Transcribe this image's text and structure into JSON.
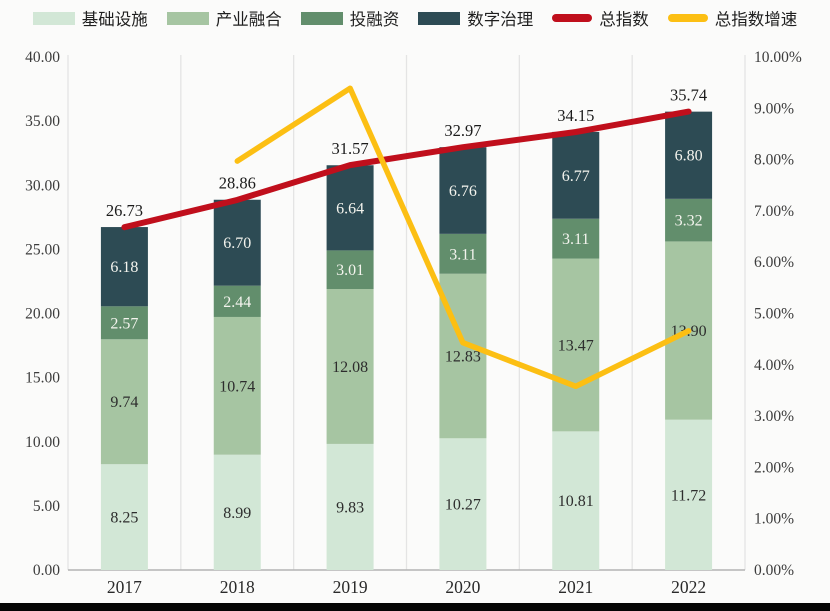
{
  "page": {
    "background_color": "#fbfbfa",
    "bottom_strip_color": "#050505"
  },
  "chart_data": {
    "type": "combo-stacked-bar-line",
    "title": "",
    "categories": [
      "2017",
      "2018",
      "2019",
      "2020",
      "2021",
      "2022"
    ],
    "bar_series": [
      {
        "name": "基础设施",
        "color": "#d2e7d6",
        "label_color": "#2d2d2d",
        "values": [
          8.25,
          8.99,
          9.83,
          10.27,
          10.81,
          11.72
        ]
      },
      {
        "name": "产业融合",
        "color": "#a6c5a2",
        "label_color": "#2d2d2d",
        "values": [
          9.74,
          10.74,
          12.08,
          12.83,
          13.47,
          13.9
        ]
      },
      {
        "name": "投融资",
        "color": "#628e6c",
        "label_color": "#f4f4ee",
        "values": [
          2.57,
          2.44,
          3.01,
          3.11,
          3.11,
          3.32
        ]
      },
      {
        "name": "数字治理",
        "color": "#2d4b54",
        "label_color": "#f4f4ee",
        "values": [
          6.18,
          6.7,
          6.64,
          6.76,
          6.77,
          6.8
        ]
      }
    ],
    "totals": [
      26.73,
      28.86,
      31.57,
      32.97,
      34.15,
      35.74
    ],
    "totals_label_color": "#1b1b1b",
    "line_series": [
      {
        "name": "总指数",
        "axis": "left",
        "color": "#c00f1c",
        "width": 6,
        "values": [
          26.73,
          28.86,
          31.57,
          32.97,
          34.15,
          35.74
        ]
      },
      {
        "name": "总指数增速",
        "axis": "right",
        "color": "#fcbf13",
        "width": 5.5,
        "values": [
          null,
          7.97,
          9.39,
          4.43,
          3.58,
          4.66
        ]
      }
    ],
    "left_axis": {
      "min": 0,
      "max": 40,
      "step": 5,
      "decimals": 2,
      "suffix": "",
      "tick_color": "#3c3c3c"
    },
    "right_axis": {
      "min": 0,
      "max": 10,
      "step": 1,
      "decimals": 2,
      "suffix": "%",
      "tick_color": "#3c3c3c"
    },
    "x_axis": {
      "label_color": "#2a2a2a"
    },
    "grid": {
      "vertical_boundaries": true,
      "line_color": "#e4e4e4",
      "axis_line_color": "#b3b3b3"
    },
    "legend_position": "top"
  }
}
